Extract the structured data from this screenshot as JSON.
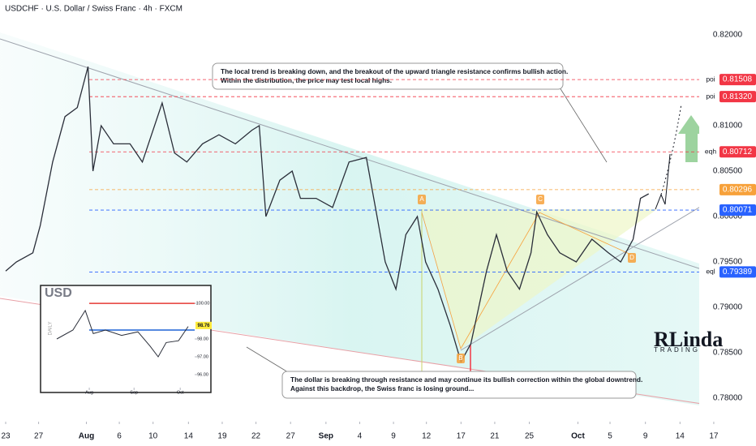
{
  "chart_data": [
    {
      "type": "line",
      "title": "USDCHF · U.S. Dollar / Swiss Franc · 4h · FXCM",
      "x": [
        0,
        1.3,
        3.3,
        4.2,
        5.7,
        7.2,
        8.7,
        10,
        10.6,
        11.6,
        13.1,
        15.1,
        16.6,
        19,
        20.5,
        22,
        23.9,
        25.9,
        27.9,
        29.9,
        30.8,
        31.6,
        33.3,
        34.8,
        35.8,
        37.7,
        39.7,
        41.7,
        43.8,
        44.9,
        46.1,
        47.4,
        48.6,
        50,
        51,
        52.5,
        54,
        55.3,
        56.5,
        58.4,
        59.6,
        60.9,
        62.4,
        63.8,
        64.5,
        65.8,
        67.3,
        69.3,
        71.2,
        73.2,
        74.7,
        76.2,
        77.1,
        78.1
      ],
      "series": [
        {
          "name": "USDCHF",
          "color": "#2a2e39",
          "values": [
            0.794,
            0.795,
            0.796,
            0.799,
            0.806,
            0.811,
            0.812,
            0.8165,
            0.805,
            0.81,
            0.808,
            0.808,
            0.806,
            0.8125,
            0.807,
            0.806,
            0.808,
            0.809,
            0.808,
            0.8095,
            0.81,
            0.8,
            0.804,
            0.805,
            0.802,
            0.802,
            0.801,
            0.806,
            0.8065,
            0.801,
            0.795,
            0.792,
            0.798,
            0.8,
            0.795,
            0.792,
            0.788,
            0.784,
            0.786,
            0.794,
            0.798,
            0.794,
            0.792,
            0.796,
            0.8005,
            0.798,
            0.796,
            0.795,
            0.7975,
            0.796,
            0.795,
            0.7975,
            0.802,
            0.8025
          ]
        }
      ],
      "xlim": [
        -0.69,
        91.13
      ],
      "xticks": [
        {
          "value": 0,
          "label": "23"
        },
        {
          "value": 4,
          "label": "27"
        },
        {
          "value": 9.8,
          "label": "Aug"
        },
        {
          "value": 13.8,
          "label": "6"
        },
        {
          "value": 17.9,
          "label": "10"
        },
        {
          "value": 22.2,
          "label": "14"
        },
        {
          "value": 26.3,
          "label": "19"
        },
        {
          "value": 30.4,
          "label": "22"
        },
        {
          "value": 34.6,
          "label": "27"
        },
        {
          "value": 38.9,
          "label": "Sep"
        },
        {
          "value": 43,
          "label": "4"
        },
        {
          "value": 47.1,
          "label": "9"
        },
        {
          "value": 51.1,
          "label": "12"
        },
        {
          "value": 55.3,
          "label": "17"
        },
        {
          "value": 59.4,
          "label": "21"
        },
        {
          "value": 63.6,
          "label": "25"
        },
        {
          "value": 69.5,
          "label": "Oct"
        },
        {
          "value": 73.4,
          "label": "5"
        },
        {
          "value": 77.7,
          "label": "9"
        },
        {
          "value": 81.9,
          "label": "14"
        },
        {
          "value": 86,
          "label": "17"
        }
      ],
      "ylim": [
        0.77741,
        0.82384
      ],
      "yticks": [
        {
          "value": 0.82,
          "label": "0.82000"
        },
        {
          "value": 0.81,
          "label": "0.81000"
        },
        {
          "value": 0.805,
          "label": "0.80500"
        },
        {
          "value": 0.8,
          "label": "0.80000"
        },
        {
          "value": 0.795,
          "label": "0.79500"
        },
        {
          "value": 0.79,
          "label": "0.79000"
        },
        {
          "value": 0.785,
          "label": "0.78500"
        },
        {
          "value": 0.78,
          "label": "0.78000"
        }
      ],
      "levels": [
        {
          "name": "poi",
          "value": 0.81508,
          "value_label": "0.81508",
          "color": "#f23645"
        },
        {
          "name": "poi",
          "value": 0.8132,
          "value_label": "0.81320",
          "color": "#f23645"
        },
        {
          "name": "eqh",
          "value": 0.80712,
          "value_label": "0.80712",
          "color": "#f23645"
        },
        {
          "value": 0.80296,
          "value_label": "0.80296",
          "color": "#f7a13a"
        },
        {
          "value": 0.80071,
          "value_label": "0.80071",
          "color": "#2962ff"
        },
        {
          "name": "eql",
          "value": 0.79389,
          "value_label": "0.79389",
          "color": "#2962ff"
        }
      ],
      "annotations": [
        "The local trend is breaking down, and the breakout of the upward triangle resistance confirms bullish action.",
        "Within the distribution, the price may test local highs.",
        "The dollar is breaking through resistance and may continue its bullish correction within the global downtrend.",
        "Against this backdrop, the Swiss franc is losing ground..."
      ],
      "point_labels": [
        "A",
        "B",
        "C",
        "D"
      ],
      "logo": "RLinda",
      "logo_sub": "TRADING"
    },
    {
      "type": "line",
      "title": "USD",
      "ylabel": "DAILY",
      "x": [
        4.5,
        15.7,
        24.2,
        29.8,
        38.2,
        49.4,
        60.7,
        69.1,
        74.7,
        80.3,
        88.8,
        95.5
      ],
      "series": [
        {
          "name": "USD",
          "color": "#2a2e39",
          "values": [
            98.0,
            98.5,
            99.6,
            98.3,
            98.5,
            98.2,
            98.4,
            97.6,
            97.0,
            97.8,
            97.9,
            98.7
          ]
        }
      ],
      "xlim": [
        0,
        100
      ],
      "xticks": [
        {
          "value": 27,
          "label": "Aug"
        },
        {
          "value": 58,
          "label": "Sep"
        },
        {
          "value": 90,
          "label": "Oct"
        }
      ],
      "ylim": [
        95.27,
        100.55
      ],
      "yticks": [
        {
          "value": 100,
          "label": "100.00"
        },
        {
          "value": 98,
          "label": "98.00"
        },
        {
          "value": 97,
          "label": "97.00"
        },
        {
          "value": 96,
          "label": "96.00"
        }
      ],
      "levels": [
        {
          "value": 100,
          "color": "#e53935"
        },
        {
          "value": 98.5,
          "color": "#1e63d6"
        }
      ],
      "last_value": 98.76
    }
  ]
}
